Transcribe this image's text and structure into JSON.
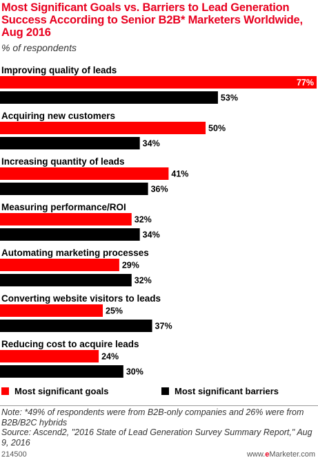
{
  "title": "Most Significant Goals vs. Barriers to Lead Generation Success According to Senior B2B* Marketers Worldwide, Aug 2016",
  "subtitle": "% of respondents",
  "chart_data": {
    "type": "bar",
    "orientation": "horizontal",
    "categories": [
      "Improving quality of leads",
      "Acquiring new customers",
      "Increasing quantity of leads",
      "Measuring performance/ROI",
      "Automating marketing processes",
      "Converting website visitors to leads",
      "Reducing cost to acquire leads"
    ],
    "series": [
      {
        "name": "Most significant goals",
        "color": "#ff0000",
        "values": [
          77,
          50,
          41,
          32,
          29,
          25,
          24
        ]
      },
      {
        "name": "Most significant barriers",
        "color": "#000000",
        "values": [
          53,
          34,
          36,
          34,
          32,
          37,
          30
        ]
      }
    ],
    "value_suffix": "%",
    "xlim": [
      0,
      77
    ],
    "grid": false,
    "legend_position": "bottom"
  },
  "notes": {
    "note": "Note: *49% of respondents were from B2B-only companies and 26% were from B2B/B2C hybrids",
    "source": "Source: Ascend2, \"2016 State of Lead Generation Survey Summary Report,\" Aug 9, 2016"
  },
  "footer": {
    "id": "214500",
    "brand_prefix": "www.",
    "brand_e": "e",
    "brand_rest": "Marketer.com"
  }
}
